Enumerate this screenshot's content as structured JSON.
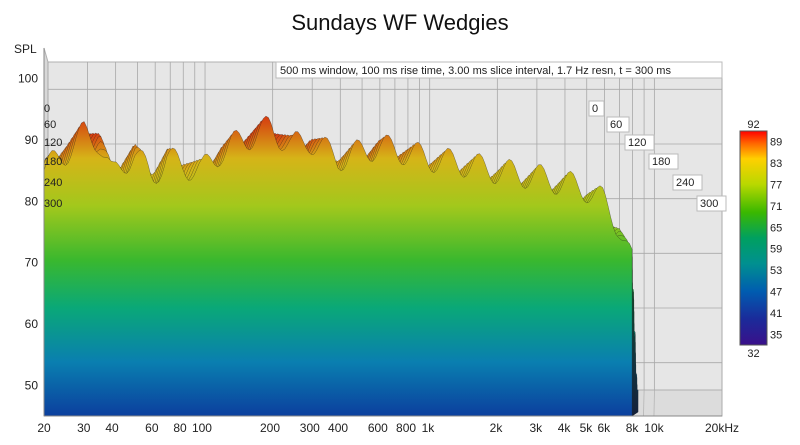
{
  "chart_data": {
    "type": "waterfall",
    "title": "Sundays WF Wedgies",
    "ylabel": "SPL",
    "annotation": "500 ms window, 100 ms rise time, 3.00 ms slice interval, 1.7 Hz resn, t = 300 ms",
    "x_scale": "log",
    "xlim": [
      20,
      20000
    ],
    "ylim": [
      45,
      105
    ],
    "x_tick_labels": [
      "20",
      "30",
      "40",
      "60",
      "80",
      "100",
      "200",
      "300",
      "400",
      "600",
      "800",
      "1k",
      "2k",
      "3k",
      "4k",
      "5k",
      "6k",
      "8k",
      "10k",
      "20kHz"
    ],
    "x_tick_values": [
      20,
      30,
      40,
      60,
      80,
      100,
      200,
      300,
      400,
      600,
      800,
      1000,
      2000,
      3000,
      4000,
      5000,
      6000,
      8000,
      10000,
      20000
    ],
    "y_ticks": [
      50,
      60,
      70,
      80,
      90,
      100
    ],
    "time_ticks_ms": [
      "0",
      "60",
      "120",
      "180",
      "240",
      "300"
    ],
    "colorbar": {
      "ticks": [
        "92",
        "89",
        "83",
        "77",
        "71",
        "65",
        "59",
        "53",
        "47",
        "41",
        "35",
        "32"
      ],
      "range": [
        32,
        92
      ]
    },
    "frequency_response_t0": {
      "freq_hz": [
        20,
        25,
        30,
        35,
        40,
        50,
        60,
        70,
        80,
        100,
        120,
        150,
        200,
        250,
        300,
        400,
        500,
        600,
        800,
        1000,
        1500,
        2000,
        3000,
        4000,
        5000,
        6000,
        7000,
        8000
      ],
      "spl_db": [
        85,
        88,
        91,
        90,
        84,
        88,
        84,
        87,
        86,
        85,
        88,
        90,
        92,
        89,
        90,
        87,
        88,
        89,
        88,
        87,
        86,
        85,
        84,
        83,
        82,
        80,
        76,
        70
      ]
    }
  },
  "colors": {
    "floor": "#dcdcdc",
    "grid": "#a8a8a8",
    "colorbar": [
      "#ff0000",
      "#ff6a00",
      "#ffd000",
      "#b8d800",
      "#3ab800",
      "#00a060",
      "#009090",
      "#005cb0",
      "#1b2a9a",
      "#3a108a"
    ]
  }
}
